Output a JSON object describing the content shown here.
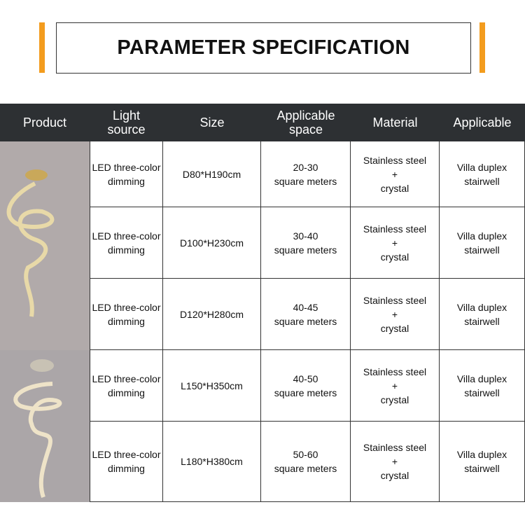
{
  "title": "PARAMETER SPECIFICATION",
  "colors": {
    "accent": "#f39c1e",
    "header_bg": "#2d3033"
  },
  "headers": [
    "Product",
    "Light\nsource",
    "Size",
    "Applicable\nspace",
    "Material",
    "Applicable"
  ],
  "rows": [
    {
      "light": "LED three-color\ndimming",
      "size": "D80*H190cm",
      "space": "20-30\nsquare meters",
      "material": "Stainless steel\n+\ncrystal",
      "applicable": "Villa duplex\nstairwell"
    },
    {
      "light": "LED three-color\ndimming",
      "size": "D100*H230cm",
      "space": "30-40\nsquare meters",
      "material": "Stainless steel\n+\ncrystal",
      "applicable": "Villa duplex\nstairwell"
    },
    {
      "light": "LED three-color\ndimming",
      "size": "D120*H280cm",
      "space": "40-45\nsquare meters",
      "material": "Stainless steel\n+\ncrystal",
      "applicable": "Villa duplex\nstairwell"
    },
    {
      "light": "LED three-color\ndimming",
      "size": "L150*H350cm",
      "space": "40-50\nsquare meters",
      "material": "Stainless steel\n+\ncrystal",
      "applicable": "Villa duplex\nstairwell"
    },
    {
      "light": "LED three-color\ndimming",
      "size": "L180*H380cm",
      "space": "50-60\nsquare meters",
      "material": "Stainless steel\n+\ncrystal",
      "applicable": "Villa duplex\nstairwell"
    }
  ]
}
